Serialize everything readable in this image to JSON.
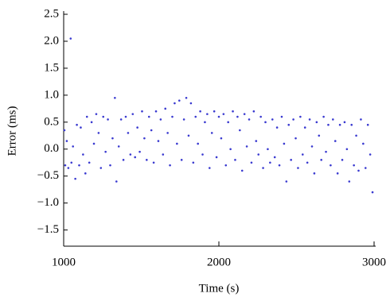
{
  "chart_data": {
    "type": "scatter",
    "xlabel": "Time (s)",
    "ylabel": "Error (ms)",
    "xlim": [
      1000,
      3000
    ],
    "xticks": [
      1000,
      2000,
      3000
    ],
    "ylim": [
      -1.8,
      2.5
    ],
    "yticks": [
      2.5,
      {
        "value": 2,
        "label": "2.0"
      },
      1.5,
      {
        "value": 1,
        "label": "1.0"
      },
      0.5,
      {
        "value": 0,
        "label": "0.0"
      },
      {
        "value": -0.5,
        "label": "−0.5"
      },
      {
        "value": -1,
        "label": "−1.0"
      },
      {
        "value": -1.5,
        "label": "−1.5"
      }
    ],
    "series": [
      {
        "color": "#3a3ad0",
        "x": [
          1005,
          1010,
          1020,
          1030,
          1045,
          1050,
          1060,
          1075,
          1085,
          1100,
          1110,
          1125,
          1140,
          1150,
          1165,
          1180,
          1195,
          1210,
          1225,
          1240,
          1255,
          1270,
          1285,
          1300,
          1315,
          1330,
          1340,
          1355,
          1370,
          1385,
          1400,
          1415,
          1430,
          1445,
          1460,
          1475,
          1490,
          1505,
          1520,
          1535,
          1550,
          1565,
          1580,
          1595,
          1610,
          1625,
          1640,
          1655,
          1670,
          1685,
          1700,
          1715,
          1730,
          1745,
          1760,
          1775,
          1790,
          1805,
          1820,
          1835,
          1850,
          1865,
          1880,
          1895,
          1910,
          1925,
          1940,
          1955,
          1970,
          1985,
          2000,
          2015,
          2030,
          2045,
          2060,
          2075,
          2090,
          2105,
          2120,
          2135,
          2150,
          2165,
          2180,
          2195,
          2210,
          2225,
          2240,
          2255,
          2270,
          2285,
          2300,
          2315,
          2330,
          2345,
          2360,
          2375,
          2390,
          2405,
          2420,
          2435,
          2450,
          2465,
          2480,
          2495,
          2510,
          2525,
          2540,
          2555,
          2570,
          2585,
          2600,
          2615,
          2630,
          2645,
          2660,
          2675,
          2690,
          2705,
          2720,
          2735,
          2750,
          2765,
          2780,
          2795,
          2810,
          2825,
          2840,
          2855,
          2870,
          2885,
          2900,
          2915,
          2930,
          2945,
          2960,
          2975,
          2990
        ],
        "values": [
          0.35,
          -0.3,
          0.15,
          -0.35,
          2.05,
          -0.25,
          0.05,
          -0.55,
          0.45,
          -0.3,
          0.4,
          -0.1,
          -0.45,
          0.6,
          -0.25,
          0.5,
          0.1,
          0.65,
          0.3,
          -0.35,
          0.6,
          -0.05,
          0.55,
          -0.3,
          0.2,
          0.95,
          -0.6,
          0.05,
          0.55,
          -0.2,
          0.6,
          0.3,
          -0.1,
          0.65,
          -0.15,
          0.4,
          -0.05,
          0.7,
          0.2,
          -0.2,
          0.6,
          0.35,
          -0.25,
          0.7,
          0.15,
          0.55,
          -0.1,
          0.75,
          0.3,
          -0.3,
          0.6,
          0.85,
          0.1,
          0.9,
          -0.2,
          0.55,
          0.95,
          0.25,
          0.85,
          -0.25,
          0.6,
          0.1,
          0.7,
          -0.1,
          0.5,
          0.65,
          -0.35,
          0.3,
          0.7,
          -0.15,
          0.6,
          0.2,
          0.65,
          -0.3,
          0.5,
          0.0,
          0.7,
          -0.2,
          0.6,
          0.35,
          -0.4,
          0.65,
          0.05,
          0.55,
          -0.25,
          0.7,
          0.15,
          -0.1,
          0.6,
          -0.35,
          0.5,
          0.0,
          -0.25,
          0.55,
          -0.15,
          0.4,
          -0.3,
          0.6,
          0.1,
          -0.6,
          0.45,
          -0.2,
          0.55,
          0.2,
          -0.35,
          0.6,
          -0.1,
          0.4,
          -0.25,
          0.55,
          0.05,
          -0.45,
          0.5,
          0.25,
          -0.2,
          0.6,
          -0.05,
          0.45,
          -0.3,
          0.55,
          0.15,
          -0.45,
          0.45,
          -0.2,
          0.5,
          0.0,
          -0.6,
          0.45,
          -0.3,
          0.25,
          -0.4,
          0.55,
          0.1,
          -0.35,
          0.45,
          -0.1,
          -0.8
        ]
      }
    ]
  }
}
